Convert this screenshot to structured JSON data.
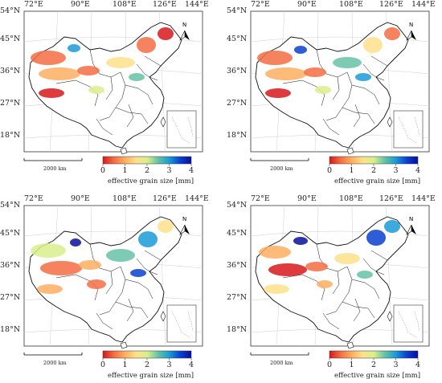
{
  "map": {
    "lon_labels": [
      "72°E",
      "90°E",
      "108°E",
      "126°E",
      "144°E"
    ],
    "lat_labels": [
      "54°N",
      "45°N",
      "36°N",
      "27°N",
      "18°N"
    ],
    "north_label": "N",
    "scale_label": "2000 km",
    "colorbar": {
      "ticks": [
        "0",
        "1",
        "2",
        "3",
        "4"
      ],
      "title": "effective grain size [mm]",
      "colors": [
        "#d7191c",
        "#f46d43",
        "#fdae61",
        "#fee08b",
        "#d9ef8b",
        "#66c2a5",
        "#1a9bd7",
        "#0a3fd0",
        "#08109c"
      ]
    }
  },
  "panels": [
    {
      "id": "panel-top-left"
    },
    {
      "id": "panel-top-right"
    },
    {
      "id": "panel-bottom-left"
    },
    {
      "id": "panel-bottom-right"
    }
  ]
}
